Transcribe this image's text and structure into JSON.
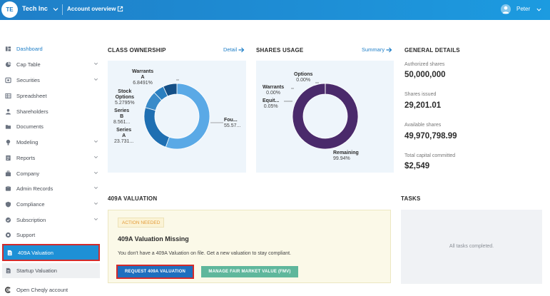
{
  "header": {
    "avatar_initials": "TE",
    "company_name": "Tech Inc",
    "account_overview": "Account overview",
    "user_name": "Peter"
  },
  "sidebar": {
    "items": [
      {
        "label": "Dashboard",
        "icon": "dashboard-icon",
        "chevron": false
      },
      {
        "label": "Cap Table",
        "icon": "cap-table-icon",
        "chevron": true
      },
      {
        "label": "Securities",
        "icon": "securities-icon",
        "chevron": true
      },
      {
        "label": "Spreadsheet",
        "icon": "spreadsheet-icon",
        "chevron": false
      },
      {
        "label": "Shareholders",
        "icon": "shareholders-icon",
        "chevron": false
      },
      {
        "label": "Documents",
        "icon": "documents-icon",
        "chevron": false
      },
      {
        "label": "Modeling",
        "icon": "modeling-icon",
        "chevron": true
      },
      {
        "label": "Reports",
        "icon": "reports-icon",
        "chevron": true
      },
      {
        "label": "Company",
        "icon": "company-icon",
        "chevron": true
      },
      {
        "label": "Admin Records",
        "icon": "admin-records-icon",
        "chevron": true
      },
      {
        "label": "Compliance",
        "icon": "compliance-icon",
        "chevron": true
      },
      {
        "label": "Subscription",
        "icon": "subscription-icon",
        "chevron": true
      },
      {
        "label": "Support",
        "icon": "support-icon",
        "chevron": false
      },
      {
        "label": "409A Valuation",
        "icon": "document-icon",
        "chevron": false
      },
      {
        "label": "Startup Valuation",
        "icon": "document-icon",
        "chevron": false
      },
      {
        "label": "Open Cheqly account",
        "icon": "cheqly-icon",
        "chevron": false
      }
    ]
  },
  "class_ownership": {
    "title": "CLASS OWNERSHIP",
    "link": "Detail",
    "labels": {
      "warrants": "Warrants",
      "warrants2": "A",
      "warrants_value": "6.8491%",
      "stock_options": "Stock",
      "stock_options2": "Options",
      "stock_options_value": "5.2795%",
      "series_b": "Series",
      "series_b2": "B",
      "series_b_value": "8.561...",
      "series_a": "Series",
      "series_a2": "A",
      "series_a_value": "23.731...",
      "founders": "Fou...",
      "founders_value": "55.57..."
    }
  },
  "shares_usage": {
    "title": "SHARES USAGE",
    "link": "Summary",
    "labels": {
      "options": "Options",
      "options_value": "0.00%",
      "warrants": "Warrants",
      "warrants_value": "0.00%",
      "equity": "Equit...",
      "equity_value": "0.05%",
      "remaining": "Remaining",
      "remaining_value": "99.94%"
    }
  },
  "general_details": {
    "title": "GENERAL DETAILS",
    "authorized_label": "Authorized shares",
    "authorized_value": "50,000,000",
    "issued_label": "Shares issued",
    "issued_value": "29,201.01",
    "available_label": "Available shares",
    "available_value": "49,970,798.99",
    "capital_label": "Total capital committed",
    "capital_value": "$2,549"
  },
  "valuation": {
    "section_title": "409A VALUATION",
    "badge": "ACTION NEEDED",
    "heading": "409A Valuation Missing",
    "description": "You don't have a 409A Valuation on file. Get a new valuation to stay compliant.",
    "primary_button": "REQUEST 409A VALUATION",
    "secondary_button": "MANAGE FAIR MARKET VALUE (FMV)"
  },
  "tasks": {
    "title": "TASKS",
    "empty_text": "All tasks completed."
  },
  "chart_data": [
    {
      "type": "pie",
      "title": "CLASS OWNERSHIP",
      "categories": [
        "Founders",
        "Series A",
        "Series B",
        "Stock Options",
        "Warrants A"
      ],
      "values": [
        55.57,
        23.731,
        8.561,
        5.2795,
        6.8491
      ],
      "colors": [
        "#5aa9e6",
        "#1f6fb2",
        "#3a8bc9",
        "#2a7fc0",
        "#144f86"
      ]
    },
    {
      "type": "pie",
      "title": "SHARES USAGE",
      "categories": [
        "Remaining",
        "Equity",
        "Warrants",
        "Options"
      ],
      "values": [
        99.94,
        0.05,
        0.0,
        0.0
      ],
      "colors": [
        "#4a2a6b",
        "#7b5aa0",
        "#9b7cbf",
        "#b79cd6"
      ]
    }
  ]
}
